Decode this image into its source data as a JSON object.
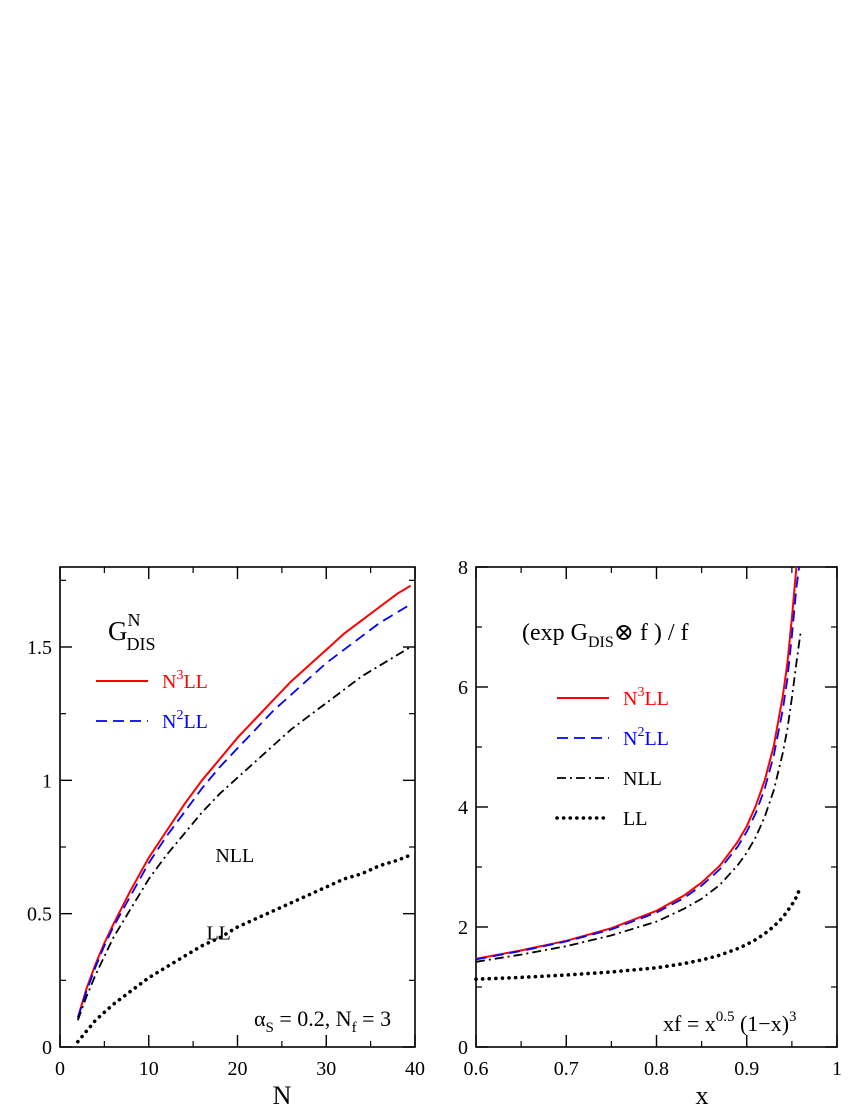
{
  "chart_data": [
    {
      "type": "line",
      "title": "G",
      "title_sup": "N",
      "title_sub": "DIS",
      "xlabel": "N",
      "ylabel": "",
      "xlim": [
        0,
        40
      ],
      "ylim": [
        0,
        1.8
      ],
      "xticks": [
        0,
        10,
        20,
        30,
        40
      ],
      "xtick_labels": [
        "0",
        "10",
        "20",
        "30",
        "40"
      ],
      "yticks": [
        0,
        0.5,
        1,
        1.5
      ],
      "ytick_labels": [
        "0",
        "0.5",
        "1",
        "1.5"
      ],
      "grid": false,
      "legend": {
        "placement": "top-left",
        "entries": [
          {
            "base": "N",
            "sup": "3",
            "rest": "LL",
            "color": "#ff0000",
            "style": "solid"
          },
          {
            "base": "N",
            "sup": "2",
            "rest": "LL",
            "color": "#0000ff",
            "style": "dashed"
          }
        ]
      },
      "annotations": [
        {
          "text": "NLL",
          "x": 17.5,
          "y": 0.72
        },
        {
          "text": "LL",
          "x": 16.5,
          "y": 0.43
        }
      ],
      "param_label": {
        "a": "α",
        "a_sub": "S",
        "mid": " = 0.2,  N",
        "n_sub": "f",
        "end": " = 3"
      },
      "series": [
        {
          "name": "N3LL",
          "color": "#ff0000",
          "style": "solid",
          "x": [
            2,
            3,
            4,
            5,
            6,
            8,
            10,
            12,
            14,
            16,
            18,
            20,
            22,
            24,
            26,
            28,
            30,
            32,
            34,
            36,
            38,
            39.5
          ],
          "y": [
            0.11,
            0.22,
            0.31,
            0.39,
            0.46,
            0.59,
            0.71,
            0.81,
            0.91,
            1.0,
            1.08,
            1.16,
            1.23,
            1.3,
            1.37,
            1.43,
            1.49,
            1.55,
            1.6,
            1.65,
            1.7,
            1.73
          ]
        },
        {
          "name": "N2LL",
          "color": "#0000ff",
          "style": "dashed",
          "x": [
            2,
            3,
            4,
            5,
            6,
            8,
            10,
            12,
            14,
            16,
            18,
            20,
            22,
            24,
            26,
            28,
            30,
            32,
            34,
            36,
            38,
            39.5
          ],
          "y": [
            0.11,
            0.21,
            0.3,
            0.38,
            0.45,
            0.57,
            0.69,
            0.79,
            0.88,
            0.97,
            1.05,
            1.12,
            1.19,
            1.26,
            1.32,
            1.38,
            1.44,
            1.49,
            1.54,
            1.59,
            1.63,
            1.66
          ]
        },
        {
          "name": "NLL",
          "color": "#000000",
          "style": "dashdot",
          "x": [
            2,
            3,
            4,
            5,
            6,
            8,
            10,
            12,
            14,
            16,
            18,
            20,
            22,
            24,
            26,
            28,
            30,
            32,
            34,
            36,
            38,
            39.5
          ],
          "y": [
            0.1,
            0.19,
            0.27,
            0.34,
            0.41,
            0.52,
            0.63,
            0.72,
            0.8,
            0.88,
            0.95,
            1.01,
            1.07,
            1.13,
            1.19,
            1.24,
            1.29,
            1.34,
            1.39,
            1.43,
            1.47,
            1.5
          ]
        },
        {
          "name": "LL",
          "color": "#000000",
          "style": "dotted",
          "x": [
            2,
            3,
            4,
            5,
            6,
            8,
            10,
            12,
            14,
            16,
            18,
            20,
            22,
            24,
            26,
            28,
            30,
            32,
            34,
            36,
            38,
            39.5
          ],
          "y": [
            0.02,
            0.06,
            0.1,
            0.13,
            0.16,
            0.21,
            0.26,
            0.3,
            0.34,
            0.38,
            0.41,
            0.45,
            0.48,
            0.51,
            0.54,
            0.57,
            0.6,
            0.63,
            0.65,
            0.68,
            0.7,
            0.72
          ]
        }
      ]
    },
    {
      "type": "line",
      "title": "(exp G",
      "title_sub": "DIS",
      "title_op": "⊗",
      "title_end": " f ) / f",
      "xlabel": "x",
      "ylabel": "",
      "xlim": [
        0.6,
        1.0
      ],
      "ylim": [
        0,
        8
      ],
      "xticks": [
        0.6,
        0.7,
        0.8,
        0.9,
        1.0
      ],
      "xtick_labels": [
        "0.6",
        "0.7",
        "0.8",
        "0.9",
        "1"
      ],
      "yticks": [
        0,
        2,
        4,
        6,
        8
      ],
      "ytick_labels": [
        "0",
        "2",
        "4",
        "6",
        "8"
      ],
      "grid": false,
      "legend": {
        "placement": "top-left",
        "entries": [
          {
            "base": "N",
            "sup": "3",
            "rest": "LL",
            "color": "#ff0000",
            "style": "solid"
          },
          {
            "base": "N",
            "sup": "2",
            "rest": "LL",
            "color": "#0000ff",
            "style": "dashed"
          },
          {
            "base": "NLL",
            "sup": "",
            "rest": "",
            "color": "#000000",
            "style": "dashdot"
          },
          {
            "base": "LL",
            "sup": "",
            "rest": "",
            "color": "#000000",
            "style": "dotted"
          }
        ]
      },
      "param_label": {
        "a": "xf = x",
        "a_sup": "0.5",
        "mid": " (1−x)",
        "mid_sup": "3"
      },
      "series": [
        {
          "name": "N3LL",
          "color": "#ff0000",
          "style": "solid",
          "x": [
            0.6,
            0.65,
            0.7,
            0.75,
            0.8,
            0.83,
            0.85,
            0.87,
            0.89,
            0.9,
            0.91,
            0.92,
            0.93,
            0.94,
            0.945,
            0.95,
            0.955
          ],
          "y": [
            1.47,
            1.61,
            1.77,
            1.98,
            2.27,
            2.52,
            2.74,
            3.02,
            3.42,
            3.68,
            4.02,
            4.45,
            5.02,
            5.85,
            6.4,
            7.15,
            8.0
          ]
        },
        {
          "name": "N2LL",
          "color": "#0000ff",
          "style": "dashed",
          "x": [
            0.6,
            0.65,
            0.7,
            0.75,
            0.8,
            0.83,
            0.85,
            0.87,
            0.89,
            0.9,
            0.91,
            0.92,
            0.93,
            0.94,
            0.945,
            0.95,
            0.955,
            0.958
          ],
          "y": [
            1.46,
            1.6,
            1.76,
            1.96,
            2.24,
            2.48,
            2.69,
            2.96,
            3.34,
            3.59,
            3.9,
            4.31,
            4.86,
            5.62,
            6.14,
            6.85,
            7.65,
            8.0
          ]
        },
        {
          "name": "NLL",
          "color": "#000000",
          "style": "dashdot",
          "x": [
            0.6,
            0.65,
            0.7,
            0.75,
            0.8,
            0.83,
            0.85,
            0.87,
            0.89,
            0.9,
            0.91,
            0.92,
            0.93,
            0.94,
            0.945,
            0.95,
            0.955,
            0.96
          ],
          "y": [
            1.42,
            1.54,
            1.68,
            1.86,
            2.09,
            2.3,
            2.47,
            2.7,
            3.03,
            3.24,
            3.5,
            3.84,
            4.28,
            4.9,
            5.3,
            5.82,
            6.4,
            6.95
          ]
        },
        {
          "name": "LL",
          "color": "#000000",
          "style": "dotted",
          "x": [
            0.6,
            0.65,
            0.7,
            0.75,
            0.8,
            0.83,
            0.85,
            0.87,
            0.89,
            0.9,
            0.91,
            0.92,
            0.93,
            0.94,
            0.95,
            0.955,
            0.96
          ],
          "y": [
            1.13,
            1.16,
            1.2,
            1.25,
            1.32,
            1.39,
            1.45,
            1.53,
            1.64,
            1.71,
            1.79,
            1.89,
            2.01,
            2.16,
            2.37,
            2.5,
            2.68
          ]
        }
      ]
    }
  ]
}
